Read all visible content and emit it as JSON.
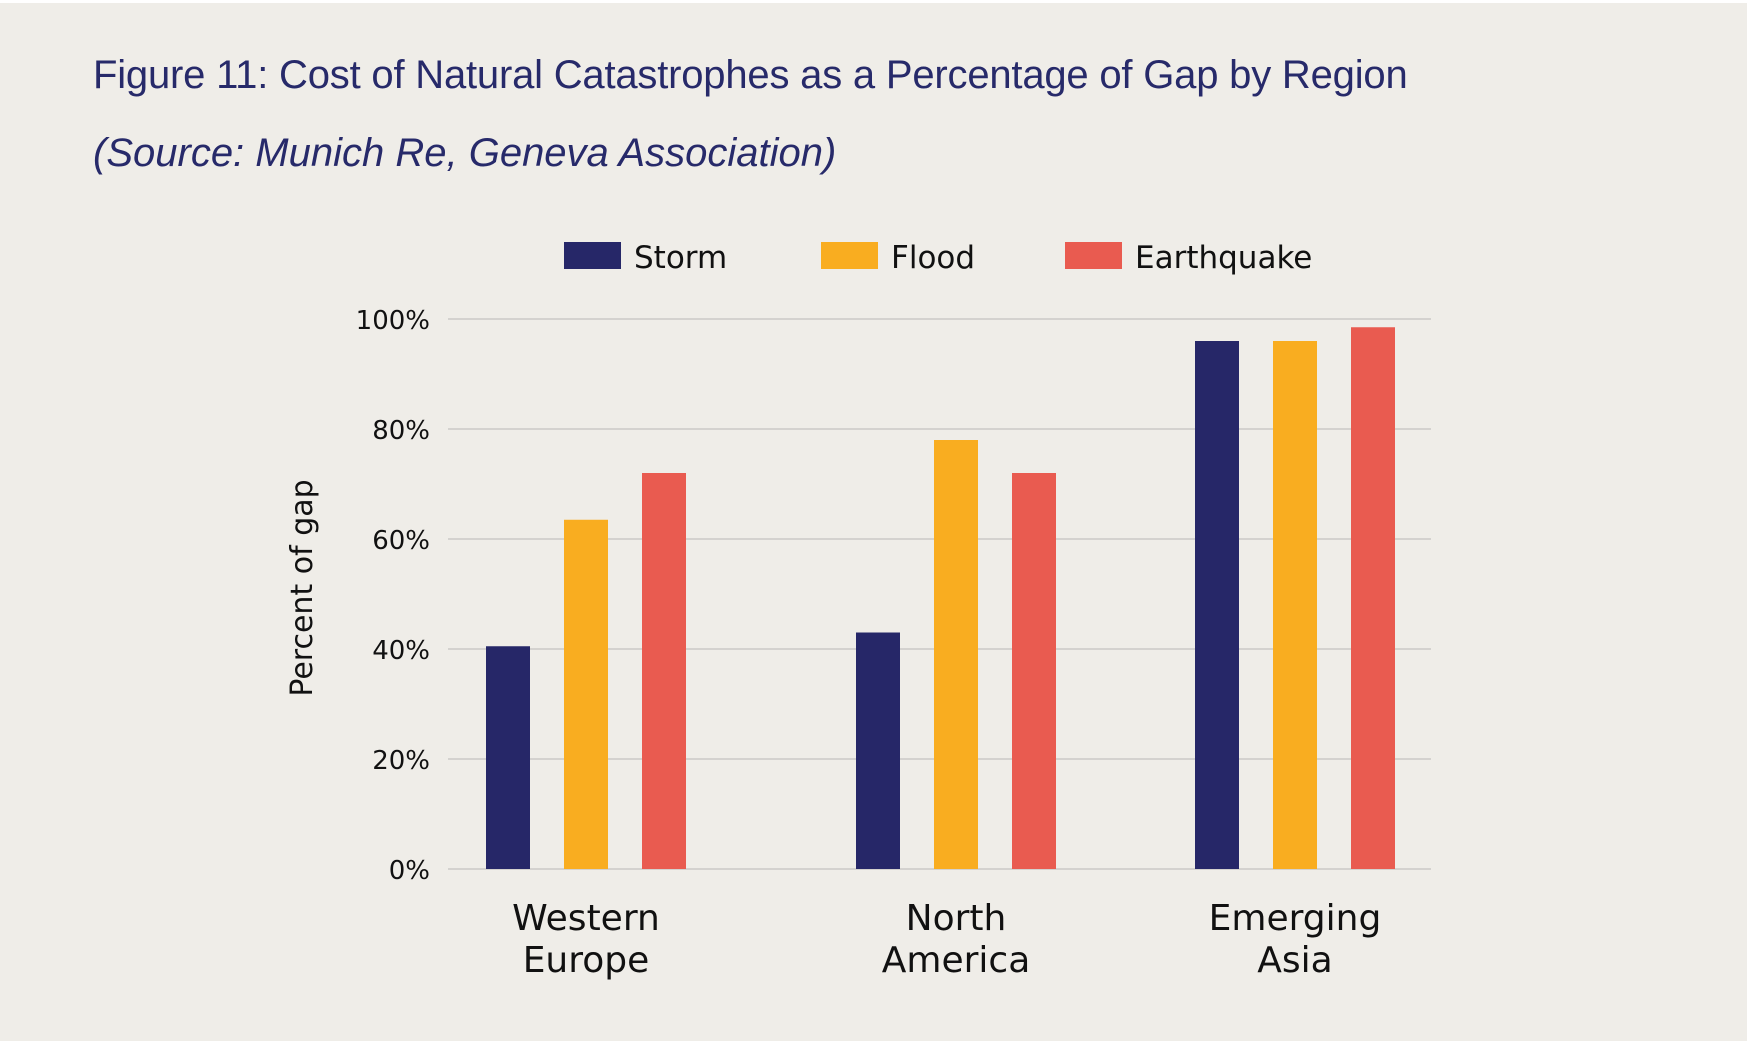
{
  "page": {
    "title": "Figure 11: Cost of Natural Catastrophes as a Percentage of Gap by Region",
    "subtitle": "(Source: Munich Re, Geneva Association)"
  },
  "chart_data": {
    "type": "bar",
    "categories": [
      [
        "Western",
        "Europe"
      ],
      [
        "North",
        "America"
      ],
      [
        "Emerging",
        "Asia"
      ]
    ],
    "series": [
      {
        "name": "Storm",
        "color": "#262768",
        "values": [
          40.5,
          43,
          96
        ]
      },
      {
        "name": "Flood",
        "color": "#f9ad20",
        "values": [
          63.5,
          78,
          96
        ]
      },
      {
        "name": "Earthquake",
        "color": "#e95b50",
        "values": [
          72,
          72,
          98.5
        ]
      }
    ],
    "ylabel": "Percent of gap",
    "ylim": [
      0,
      100
    ],
    "yticks": [
      0,
      20,
      40,
      60,
      80,
      100
    ],
    "ytick_labels": [
      "0%",
      "20%",
      "40%",
      "60%",
      "80%",
      "100%"
    ],
    "grid": true,
    "legend": "top-center"
  }
}
